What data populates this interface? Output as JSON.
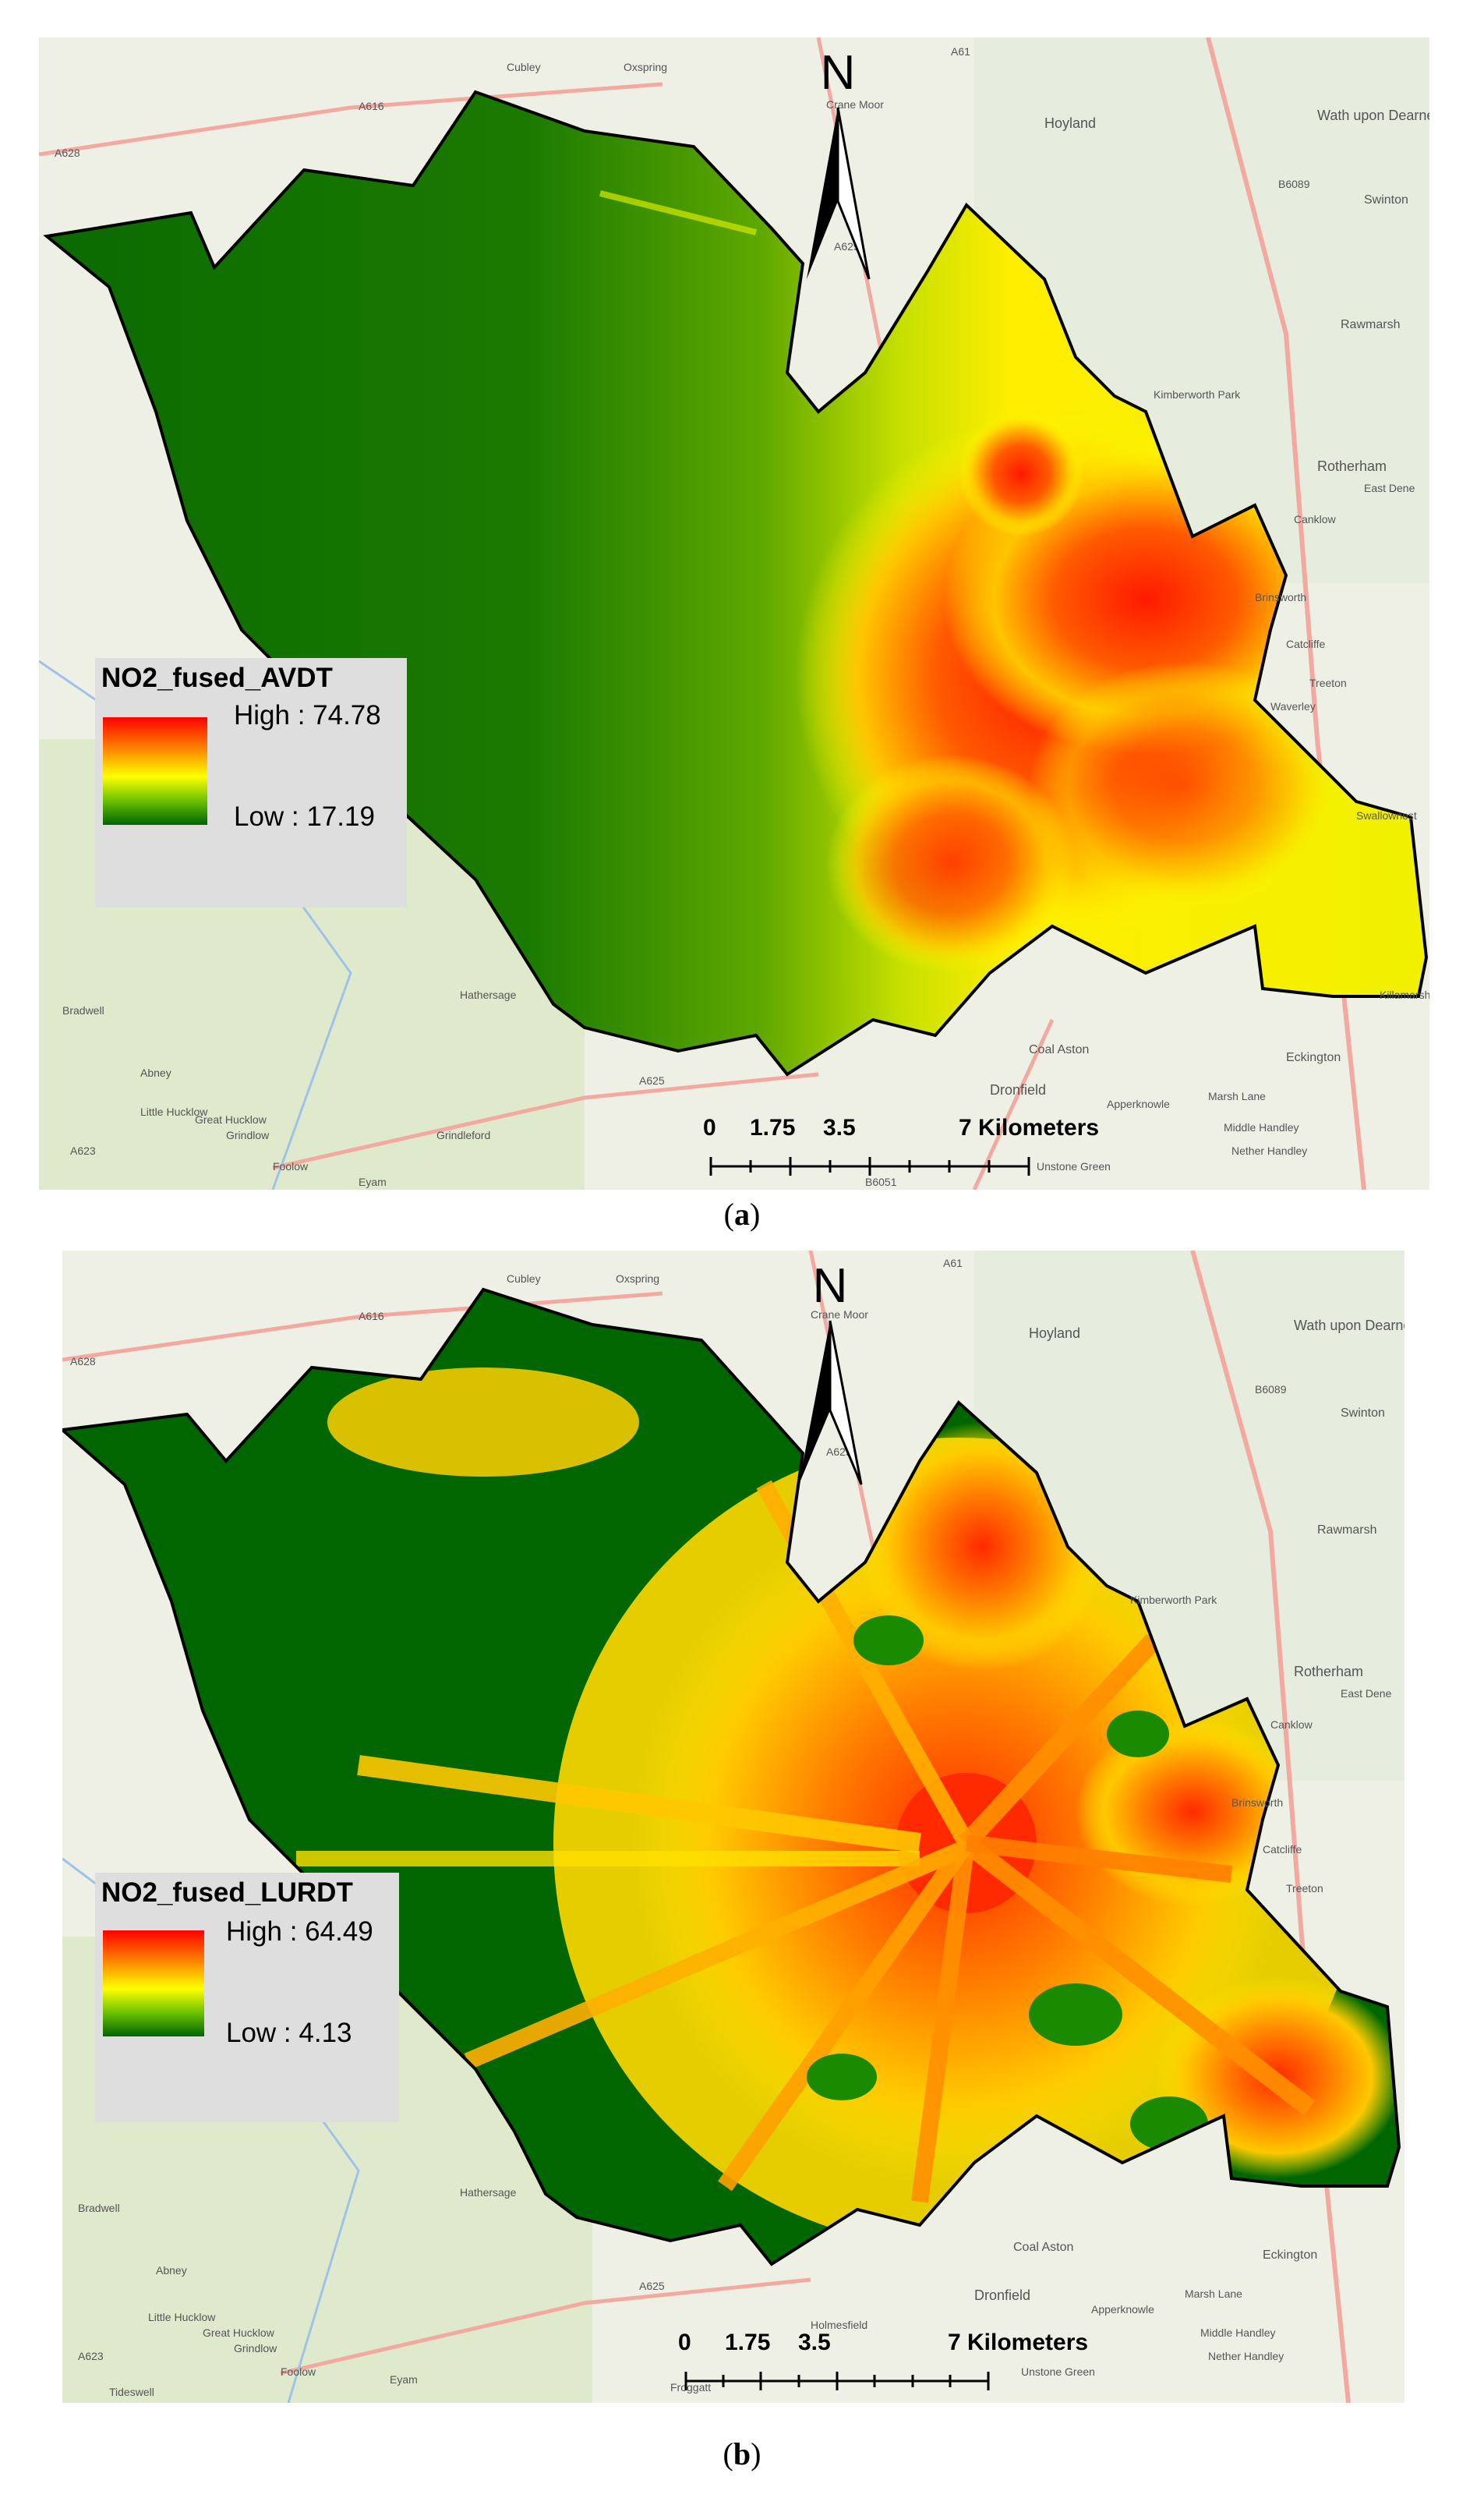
{
  "panels": [
    {
      "caption_letter": "a",
      "legend": {
        "title": "NO2_fused_AVDT",
        "high_label": "High : 74.78",
        "low_label": "Low : 17.19"
      },
      "north_label": "N",
      "scale": {
        "ticks": [
          "0",
          "1.75",
          "3.5",
          "7 Kilometers"
        ]
      }
    },
    {
      "caption_letter": "b",
      "legend": {
        "title": "NO2_fused_LURDT",
        "high_label": "High : 64.49",
        "low_label": "Low : 4.13"
      },
      "north_label": "N",
      "scale": {
        "ticks": [
          "0",
          "1.75",
          "3.5",
          "7 Kilometers"
        ]
      }
    }
  ],
  "basemap_labels": {
    "a": [
      "Cubley",
      "Oxspring",
      "Crane Moor",
      "Hoyland",
      "Wath upon Dearne",
      "Swinton",
      "Rawmarsh",
      "Kimberworth Park",
      "Rotherham",
      "East Dene",
      "Canklow",
      "Brinsworth",
      "Catcliffe",
      "Treeton",
      "Waverley",
      "Swallownest",
      "Killamarsh",
      "Eckington",
      "Marsh Lane",
      "Coal Aston",
      "Dronfield",
      "Apperknowle",
      "Middle Handley",
      "Nether Handley",
      "Unstone Green",
      "Hathersage",
      "Bradwell",
      "Abney",
      "Little Hucklow",
      "Great Hucklow",
      "Grindlow",
      "Foolow",
      "Eyam",
      "Grindleford",
      "A616",
      "A628",
      "A61",
      "A629",
      "A625",
      "A623",
      "B6089",
      "B6051"
    ],
    "b": [
      "Cubley",
      "Oxspring",
      "Crane Moor",
      "Hoyland",
      "Wath upon Dearne",
      "Swinton",
      "Rawmarsh",
      "Kimberworth Park",
      "Rotherham",
      "East Dene",
      "Canklow",
      "Brinsworth",
      "Catcliffe",
      "Treeton",
      "Eckington",
      "Marsh Lane",
      "Coal Aston",
      "Dronfield",
      "Apperknowle",
      "Middle Handley",
      "Nether Handley",
      "Unstone Green",
      "Holmesfield",
      "Hathersage",
      "Bradwell",
      "Abney",
      "Little Hucklow",
      "Great Hucklow",
      "Grindlow",
      "Foolow",
      "Eyam",
      "Froggatt",
      "Tideswell",
      "A616",
      "A628",
      "A61",
      "A629",
      "A625",
      "A623",
      "B6089"
    ]
  },
  "colors": {
    "high": "#ff0000",
    "mid": "#ffff00",
    "low": "#006400",
    "boundary": "#000000",
    "basemap": "#eef0e6",
    "legend_bg": "#dedede"
  }
}
